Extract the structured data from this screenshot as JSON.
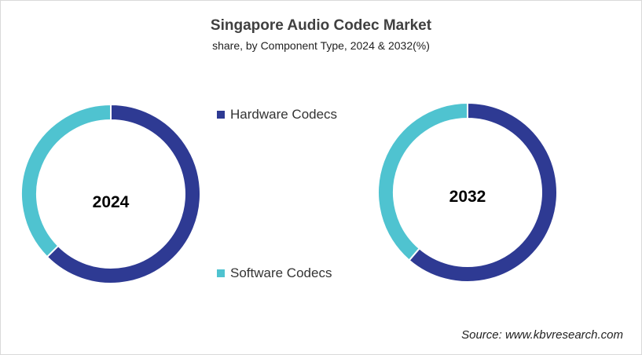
{
  "chart_data": {
    "type": "pie",
    "title": "Singapore Audio Codec Market",
    "subtitle": "share, by Component Type, 2024 & 2032(%)",
    "categories": [
      "Hardware Codecs",
      "Software Codecs"
    ],
    "colors": {
      "Hardware Codecs": "#2E3A93",
      "Software Codecs": "#4FC3D0"
    },
    "legend_position": "center",
    "charts": [
      {
        "label": "2024",
        "values": [
          62.6,
          37.4
        ]
      },
      {
        "label": "2032",
        "values": [
          61.3,
          38.7
        ]
      }
    ]
  },
  "source": "Source: www.kbvresearch.com"
}
